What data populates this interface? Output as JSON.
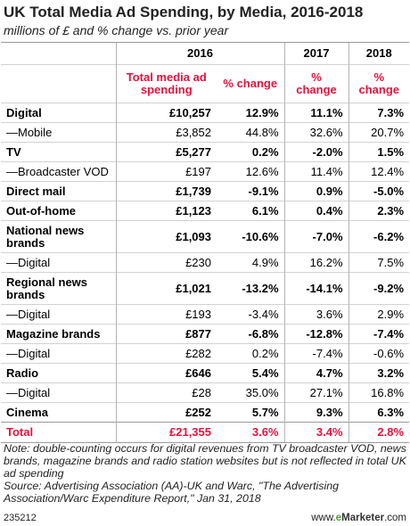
{
  "title": "UK Total Media Ad Spending, by Media, 2016-2018",
  "subtitle": "millions of £ and % change vs. prior year",
  "years": [
    "2016",
    "2017",
    "2018"
  ],
  "col_headers": {
    "spend": "Total media ad spending",
    "change": "% change"
  },
  "colors": {
    "accent": "#e8123d",
    "brand_green": "#4c9d34",
    "grid": "#d2d2d2"
  },
  "chart_data": {
    "type": "table",
    "title": "UK Total Media Ad Spending, by Media, 2016-2018",
    "subtitle": "millions of £ and % change vs. prior year",
    "rows": [
      {
        "media": "Digital",
        "bold": true,
        "spend_2016": "£10,257",
        "change_2016": "12.9%",
        "change_2017": "11.1%",
        "change_2018": "7.3%"
      },
      {
        "media": "—Mobile",
        "bold": false,
        "spend_2016": "£3,852",
        "change_2016": "44.8%",
        "change_2017": "32.6%",
        "change_2018": "20.7%"
      },
      {
        "media": "TV",
        "bold": true,
        "spend_2016": "£5,277",
        "change_2016": "0.2%",
        "change_2017": "-2.0%",
        "change_2018": "1.5%"
      },
      {
        "media": "—Broadcaster VOD",
        "bold": false,
        "spend_2016": "£197",
        "change_2016": "12.6%",
        "change_2017": "11.4%",
        "change_2018": "12.4%"
      },
      {
        "media": "Direct mail",
        "bold": true,
        "spend_2016": "£1,739",
        "change_2016": "-9.1%",
        "change_2017": "0.9%",
        "change_2018": "-5.0%"
      },
      {
        "media": "Out-of-home",
        "bold": true,
        "spend_2016": "£1,123",
        "change_2016": "6.1%",
        "change_2017": "0.4%",
        "change_2018": "2.3%"
      },
      {
        "media": "National news brands",
        "bold": true,
        "tall": true,
        "spend_2016": "£1,093",
        "change_2016": "-10.6%",
        "change_2017": "-7.0%",
        "change_2018": "-6.2%"
      },
      {
        "media": "—Digital",
        "bold": false,
        "spend_2016": "£230",
        "change_2016": "4.9%",
        "change_2017": "16.2%",
        "change_2018": "7.5%"
      },
      {
        "media": "Regional news brands",
        "bold": true,
        "tall": true,
        "spend_2016": "£1,021",
        "change_2016": "-13.2%",
        "change_2017": "-14.1%",
        "change_2018": "-9.2%"
      },
      {
        "media": "—Digital",
        "bold": false,
        "spend_2016": "£193",
        "change_2016": "-3.4%",
        "change_2017": "3.6%",
        "change_2018": "2.9%"
      },
      {
        "media": "Magazine brands",
        "bold": true,
        "spend_2016": "£877",
        "change_2016": "-6.8%",
        "change_2017": "-12.8%",
        "change_2018": "-7.4%"
      },
      {
        "media": "—Digital",
        "bold": false,
        "spend_2016": "£282",
        "change_2016": "0.2%",
        "change_2017": "-7.4%",
        "change_2018": "-0.6%"
      },
      {
        "media": "Radio",
        "bold": true,
        "spend_2016": "£646",
        "change_2016": "5.4%",
        "change_2017": "4.7%",
        "change_2018": "3.2%"
      },
      {
        "media": "—Digital",
        "bold": false,
        "spend_2016": "£28",
        "change_2016": "35.0%",
        "change_2017": "27.1%",
        "change_2018": "16.8%"
      },
      {
        "media": "Cinema",
        "bold": true,
        "spend_2016": "£252",
        "change_2016": "5.7%",
        "change_2017": "9.3%",
        "change_2018": "6.3%"
      }
    ],
    "total": {
      "media": "Total",
      "spend_2016": "£21,355",
      "change_2016": "3.6%",
      "change_2017": "3.4%",
      "change_2018": "2.8%"
    }
  },
  "note": "Note: double-counting occurs for digital revenues from TV broadcaster VOD, news brands, magazine brands and radio station websites but is not reflected in total UK ad spending",
  "source": "Source: Advertising Association (AA)-UK and Warc, \"The Advertising Association/Warc Expenditure Report,\" Jan 31, 2018",
  "footer": {
    "id": "235212",
    "brand_prefix": "www.",
    "brand_e": "e",
    "brand_suffix": "Marketer",
    "brand_tld": ".com"
  }
}
